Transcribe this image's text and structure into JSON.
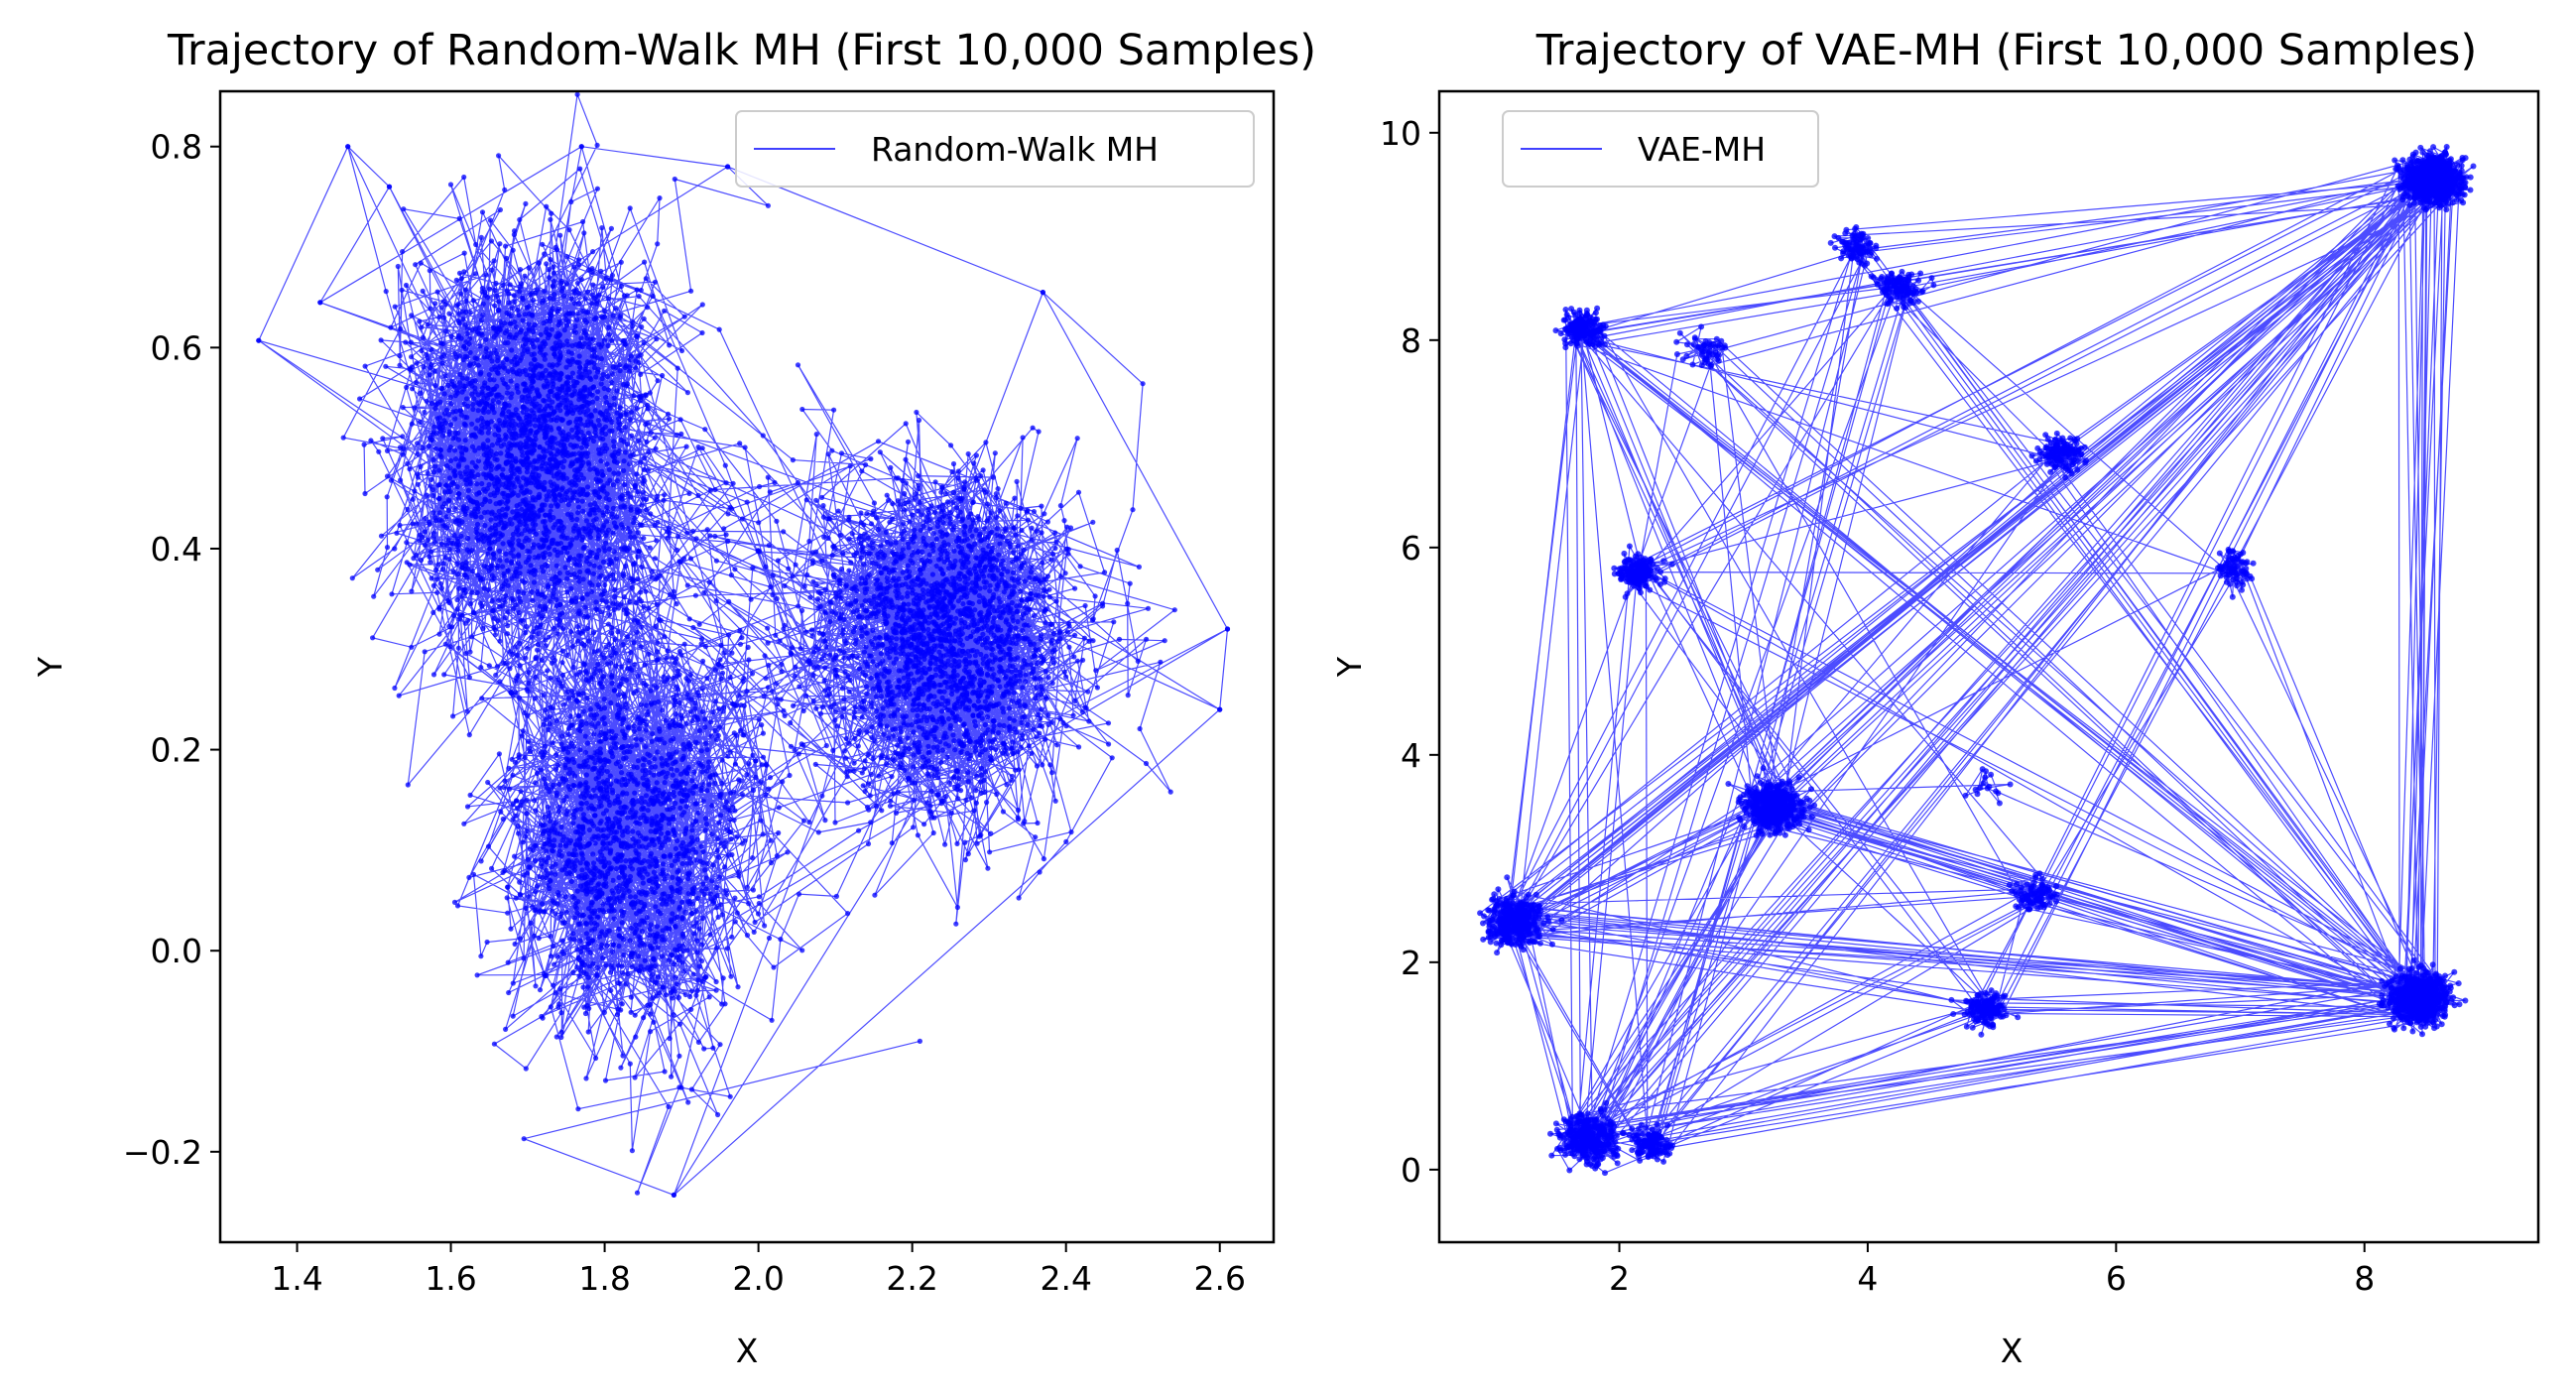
{
  "chart_data": [
    {
      "type": "line",
      "title": "Trajectory of Random-Walk MH (First 10,000 Samples)",
      "xlabel": "X",
      "ylabel": "Y",
      "xlim": [
        1.3,
        2.67
      ],
      "ylim": [
        -0.29,
        0.855
      ],
      "xticks": [
        1.4,
        1.6,
        1.8,
        2.0,
        2.2,
        2.4,
        2.6
      ],
      "yticks": [
        -0.2,
        0.0,
        0.2,
        0.4,
        0.6,
        0.8
      ],
      "xtick_labels": [
        "1.4",
        "1.6",
        "1.8",
        "2.0",
        "2.2",
        "2.4",
        "2.6"
      ],
      "ytick_labels": [
        "−0.2",
        "0.0",
        "0.2",
        "0.4",
        "0.6",
        "0.8"
      ],
      "grid": false,
      "legend_position": "upper right",
      "color": "#0000ff",
      "series": [
        {
          "name": "Random-Walk MH",
          "n_samples": 10000,
          "modes": [
            {
              "x": 1.7,
              "y": 0.5,
              "sx": 0.1,
              "sy": 0.12,
              "weight": 0.4
            },
            {
              "x": 1.84,
              "y": 0.12,
              "sx": 0.1,
              "sy": 0.12,
              "weight": 0.3
            },
            {
              "x": 2.25,
              "y": 0.31,
              "sx": 0.1,
              "sy": 0.1,
              "weight": 0.3
            }
          ],
          "extreme_points": [
            [
              1.35,
              0.607
            ],
            [
              1.466,
              0.8
            ],
            [
              1.52,
              0.76
            ],
            [
              1.43,
              0.645
            ],
            [
              1.77,
              0.8
            ],
            [
              1.96,
              0.78
            ],
            [
              2.37,
              0.655
            ],
            [
              2.61,
              0.32
            ],
            [
              2.6,
              0.24
            ],
            [
              1.89,
              -0.243
            ],
            [
              1.695,
              -0.187
            ],
            [
              2.21,
              -0.09
            ]
          ]
        }
      ]
    },
    {
      "type": "line",
      "title": "Trajectory of VAE-MH (First 10,000 Samples)",
      "xlabel": "X",
      "ylabel": "Y",
      "xlim": [
        0.55,
        9.4
      ],
      "ylim": [
        -0.7,
        10.4
      ],
      "xticks": [
        2,
        4,
        6,
        8
      ],
      "yticks": [
        0,
        2,
        4,
        6,
        8,
        10
      ],
      "xtick_labels": [
        "2",
        "4",
        "6",
        "8"
      ],
      "ytick_labels": [
        "0",
        "2",
        "4",
        "6",
        "8",
        "10"
      ],
      "grid": false,
      "legend_position": "upper left",
      "color": "#0000ff",
      "series": [
        {
          "name": "VAE-MH",
          "n_samples": 10000,
          "modes": [
            {
              "x": 8.55,
              "y": 9.55,
              "weight": 0.16
            },
            {
              "x": 8.45,
              "y": 1.65,
              "weight": 0.17
            },
            {
              "x": 1.15,
              "y": 2.4,
              "weight": 0.14
            },
            {
              "x": 3.25,
              "y": 3.5,
              "weight": 0.12
            },
            {
              "x": 1.75,
              "y": 0.3,
              "weight": 0.09
            },
            {
              "x": 2.25,
              "y": 0.25,
              "weight": 0.05
            },
            {
              "x": 1.7,
              "y": 8.1,
              "weight": 0.05
            },
            {
              "x": 5.35,
              "y": 2.65,
              "weight": 0.04
            },
            {
              "x": 4.95,
              "y": 1.55,
              "weight": 0.03
            },
            {
              "x": 3.9,
              "y": 8.9,
              "weight": 0.03
            },
            {
              "x": 4.25,
              "y": 8.5,
              "weight": 0.03
            },
            {
              "x": 2.7,
              "y": 7.9,
              "weight": 0.02
            },
            {
              "x": 5.55,
              "y": 6.9,
              "weight": 0.02
            },
            {
              "x": 6.95,
              "y": 5.8,
              "weight": 0.02
            },
            {
              "x": 2.15,
              "y": 5.75,
              "weight": 0.02
            },
            {
              "x": 4.95,
              "y": 3.7,
              "weight": 0.01
            }
          ]
        }
      ]
    }
  ]
}
